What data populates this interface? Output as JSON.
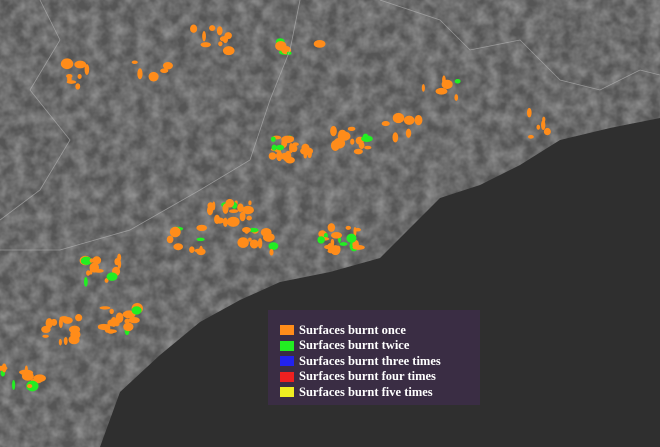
{
  "legend": {
    "items": [
      {
        "label": "Surfaces burnt once",
        "color": "#ff8c1a"
      },
      {
        "label": "Surfaces burnt twice",
        "color": "#22ee22"
      },
      {
        "label": "Surfaces burnt three times",
        "color": "#2222ee"
      },
      {
        "label": "Surfaces burnt four times",
        "color": "#ee2020"
      },
      {
        "label": "Surfaces burnt five times",
        "color": "#eeee22"
      }
    ]
  }
}
